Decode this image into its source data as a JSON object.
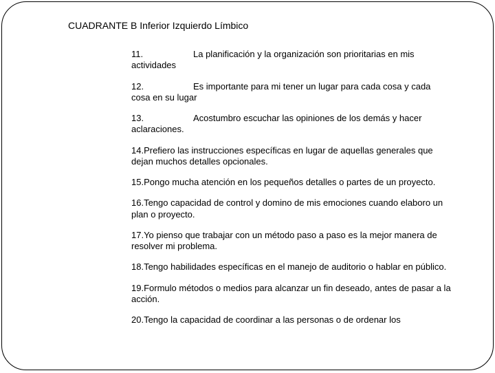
{
  "title": "CUADRANTE B  Inferior Izquierdo Límbico",
  "items": [
    {
      "num": "11.",
      "wide": true,
      "text": "La planificación y la organización son prioritarias en mis actividades"
    },
    {
      "num": "12.",
      "wide": true,
      "text": "Es importante para mi tener un lugar para cada cosa y cada cosa en su lugar"
    },
    {
      "num": "13.",
      "wide": true,
      "text": "Acostumbro escuchar las opiniones de los demás y hacer aclaraciones."
    },
    {
      "num": "14.",
      "wide": false,
      "text": "Prefiero las instrucciones específicas en lugar de aquellas generales que dejan muchos detalles opcionales."
    },
    {
      "num": "15.",
      "wide": false,
      "text": "Pongo mucha atención en los pequeños detalles o partes de un proyecto."
    },
    {
      "num": "16.",
      "wide": false,
      "text": "Tengo capacidad de control y domino de mis emociones cuando elaboro un plan o proyecto."
    },
    {
      "num": "17.",
      "wide": false,
      "text": "Yo pienso que trabajar con un método paso a paso es la mejor manera de resolver mi problema."
    },
    {
      "num": "18.",
      "wide": false,
      "text": "Tengo habilidades específicas en el manejo de auditorio o hablar en público."
    },
    {
      "num": "19.",
      "wide": false,
      "text": "Formulo métodos o medios para alcanzar un fin deseado, antes de pasar a la acción."
    },
    {
      "num": "20.",
      "wide": false,
      "text": "Tengo la capacidad de coordinar a las personas o de ordenar los"
    }
  ]
}
